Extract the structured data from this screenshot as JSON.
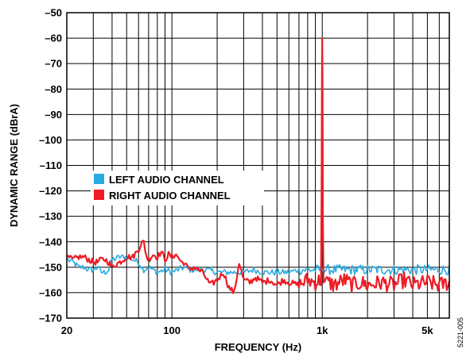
{
  "chart_data": {
    "type": "line",
    "title": "",
    "xlabel": "FREQUENCY (Hz)",
    "ylabel": "DYNAMIC RANGE (dBrA)",
    "xscale": "log",
    "xlim": [
      20,
      7000
    ],
    "ylim": [
      -170,
      -50
    ],
    "x_ticks": [
      {
        "value": 20,
        "label": "20"
      },
      {
        "value": 100,
        "label": "100"
      },
      {
        "value": 1000,
        "label": "1k"
      },
      {
        "value": 5000,
        "label": "5k"
      }
    ],
    "y_ticks": [
      {
        "value": -50,
        "label": "–50"
      },
      {
        "value": -60,
        "label": "–60"
      },
      {
        "value": -70,
        "label": "–70"
      },
      {
        "value": -80,
        "label": "–80"
      },
      {
        "value": -90,
        "label": "–90"
      },
      {
        "value": -100,
        "label": "–100"
      },
      {
        "value": -110,
        "label": "–110"
      },
      {
        "value": -120,
        "label": "–120"
      },
      {
        "value": -130,
        "label": "–130"
      },
      {
        "value": -140,
        "label": "–140"
      },
      {
        "value": -150,
        "label": "–150"
      },
      {
        "value": -160,
        "label": "–160"
      },
      {
        "value": -170,
        "label": "–170"
      }
    ],
    "grid": true,
    "legend_position": "center-left",
    "figure_id": "5221-005",
    "series": [
      {
        "name": "LEFT AUDIO CHANNEL",
        "color": "#29abe2",
        "x": [
          20,
          22,
          24,
          26,
          28,
          30,
          32,
          34,
          36,
          38,
          40,
          45,
          50,
          55,
          60,
          65,
          70,
          75,
          80,
          90,
          100,
          110,
          120,
          130,
          150,
          170,
          200,
          250,
          300,
          350,
          400,
          500,
          600,
          700,
          800,
          900,
          980,
          1000,
          1020,
          1100,
          1300,
          1500,
          2000,
          2500,
          3000,
          4000,
          5000,
          6000,
          7000
        ],
        "y": [
          -147,
          -148,
          -150,
          -150,
          -151,
          -151,
          -150,
          -152,
          -152,
          -151,
          -147,
          -146,
          -146,
          -147,
          -148,
          -151,
          -150,
          -151,
          -152,
          -151,
          -152,
          -151,
          -150,
          -151,
          -151,
          -151,
          -152,
          -152,
          -152,
          -151,
          -152,
          -152,
          -152,
          -151,
          -151,
          -151,
          -151,
          -150,
          -151,
          -151,
          -151,
          -151,
          -151,
          -151,
          -151,
          -151,
          -151,
          -151,
          -151
        ]
      },
      {
        "name": "RIGHT AUDIO CHANNEL",
        "color": "#ee1c25",
        "x": [
          20,
          22,
          24,
          26,
          28,
          30,
          32,
          34,
          36,
          38,
          40,
          42,
          45,
          50,
          55,
          60,
          62,
          65,
          68,
          70,
          75,
          80,
          85,
          90,
          95,
          100,
          105,
          110,
          115,
          120,
          130,
          140,
          160,
          180,
          200,
          220,
          240,
          260,
          280,
          300,
          330,
          360,
          400,
          450,
          500,
          550,
          600,
          700,
          800,
          900,
          980,
          990,
          995,
          1000,
          1005,
          1010,
          1020,
          1100,
          1200,
          1400,
          1600,
          1800,
          2000,
          2500,
          3000,
          3500,
          4000,
          5000,
          6000,
          7000
        ],
        "y": [
          -146,
          -147,
          -146,
          -146,
          -147,
          -148,
          -148,
          -147,
          -147,
          -148,
          -150,
          -149,
          -148,
          -146,
          -146,
          -143,
          -141,
          -140,
          -146,
          -147,
          -145,
          -146,
          -144,
          -147,
          -145,
          -146,
          -145,
          -146,
          -148,
          -148,
          -151,
          -150,
          -152,
          -157,
          -155,
          -152,
          -158,
          -160,
          -148,
          -155,
          -156,
          -154,
          -156,
          -155,
          -157,
          -155,
          -156,
          -157,
          -155,
          -156,
          -155,
          -120,
          -80,
          -60,
          -80,
          -130,
          -156,
          -156,
          -157,
          -155,
          -157,
          -156,
          -157,
          -156,
          -157,
          -155,
          -157,
          -156,
          -157,
          -156
        ]
      }
    ]
  }
}
